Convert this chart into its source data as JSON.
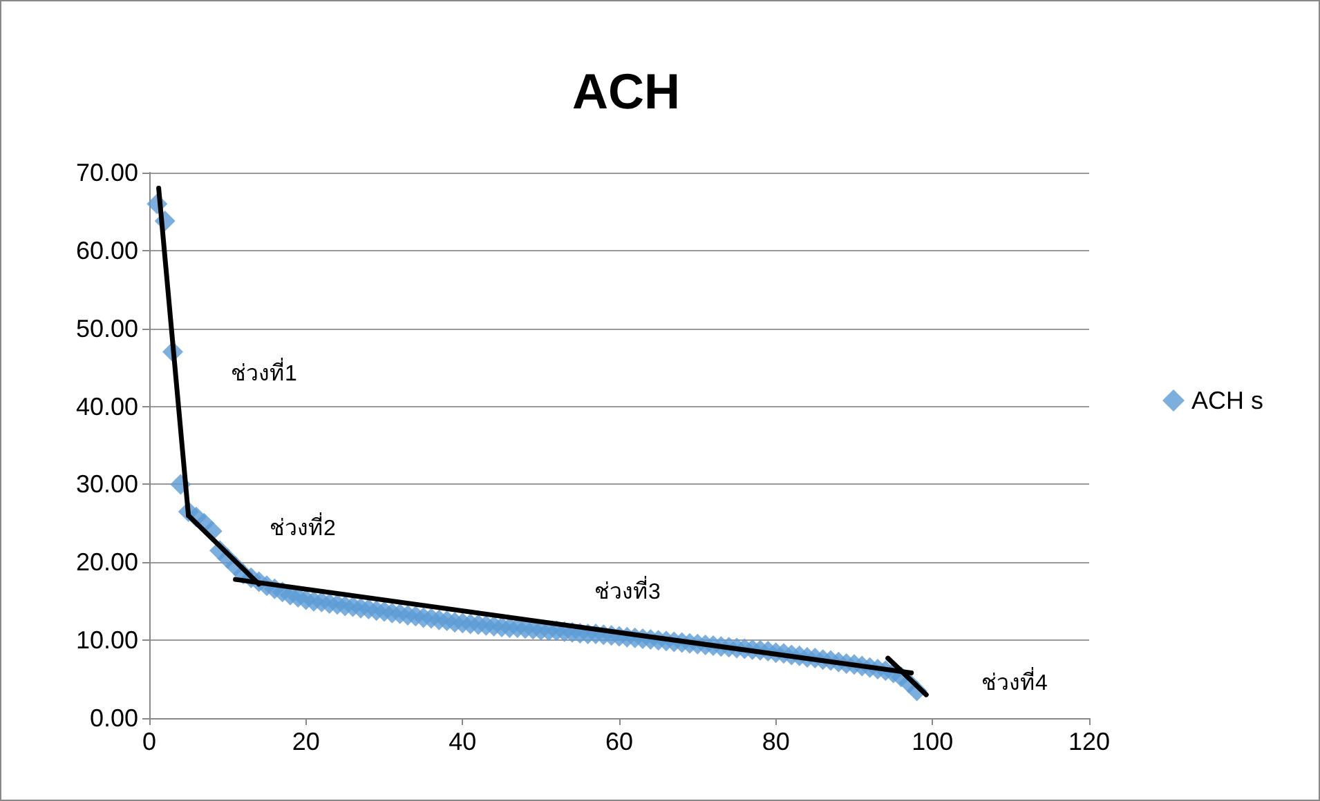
{
  "chart_data": {
    "type": "scatter",
    "title": "ACH",
    "xlim": [
      0,
      120
    ],
    "xticks": [
      0,
      20,
      40,
      60,
      80,
      100,
      120
    ],
    "ylim": [
      0,
      70
    ],
    "yticks": [
      {
        "value": 0,
        "label": "0.00"
      },
      {
        "value": 10,
        "label": "10.00"
      },
      {
        "value": 20,
        "label": "20.00"
      },
      {
        "value": 30,
        "label": "30.00"
      },
      {
        "value": 40,
        "label": "40.00"
      },
      {
        "value": 50,
        "label": "50.00"
      },
      {
        "value": 60,
        "label": "60.00"
      },
      {
        "value": 70,
        "label": "70.00"
      }
    ],
    "grid": "y",
    "legend": "right",
    "marker": "diamond",
    "series": [
      {
        "name": "ACH s",
        "color": "#5b9bd5",
        "x": [
          1,
          2,
          3,
          4,
          5,
          6,
          7,
          8,
          9,
          10,
          11,
          12,
          13,
          14,
          15,
          16,
          17,
          18,
          19,
          20,
          21,
          22,
          23,
          24,
          25,
          26,
          27,
          28,
          29,
          30,
          31,
          32,
          33,
          34,
          35,
          36,
          37,
          38,
          39,
          40,
          41,
          42,
          43,
          44,
          45,
          46,
          47,
          48,
          49,
          50,
          51,
          52,
          53,
          54,
          55,
          56,
          57,
          58,
          59,
          60,
          61,
          62,
          63,
          64,
          65,
          66,
          67,
          68,
          69,
          70,
          71,
          72,
          73,
          74,
          75,
          76,
          77,
          78,
          79,
          80,
          81,
          82,
          83,
          84,
          85,
          86,
          87,
          88,
          89,
          90,
          91,
          92,
          93,
          94,
          95,
          96,
          97,
          98
        ],
        "values": [
          66,
          63.8,
          47,
          30,
          26.5,
          25.8,
          25,
          24,
          21.5,
          20.5,
          19.5,
          18.5,
          18,
          17.5,
          17,
          16.6,
          16.2,
          15.8,
          15.5,
          15.2,
          15.0,
          14.9,
          14.7,
          14.6,
          14.4,
          14.3,
          14.1,
          14.0,
          13.8,
          13.7,
          13.5,
          13.4,
          13.2,
          13.1,
          12.9,
          12.8,
          12.6,
          12.5,
          12.3,
          12.2,
          12.1,
          12.0,
          11.9,
          11.8,
          11.7,
          11.6,
          11.6,
          11.5,
          11.4,
          11.3,
          11.2,
          11.2,
          11.1,
          11.0,
          10.9,
          10.8,
          10.8,
          10.7,
          10.6,
          10.5,
          10.4,
          10.3,
          10.2,
          10.1,
          10.0,
          9.9,
          9.8,
          9.7,
          9.6,
          9.5,
          9.4,
          9.3,
          9.2,
          9.1,
          9.0,
          8.9,
          8.8,
          8.7,
          8.6,
          8.4,
          8.3,
          8.1,
          8.0,
          7.8,
          7.7,
          7.5,
          7.4,
          7.2,
          7.0,
          6.9,
          6.7,
          6.5,
          6.3,
          6.1,
          5.8,
          5.3,
          4.5,
          3.5
        ]
      },
      {
        "type": "line",
        "marker": "none",
        "color": "#000000",
        "x": [
          1.2,
          5
        ],
        "values": [
          68,
          26
        ]
      },
      {
        "type": "line",
        "marker": "none",
        "color": "#000000",
        "x": [
          5,
          14
        ],
        "values": [
          26,
          17.2
        ]
      },
      {
        "type": "line",
        "marker": "none",
        "color": "#000000",
        "x": [
          11,
          97.3
        ],
        "values": [
          17.8,
          5.8
        ]
      },
      {
        "type": "line",
        "marker": "none",
        "color": "#000000",
        "x": [
          94.3,
          99.2
        ],
        "values": [
          7.7,
          3.0
        ]
      }
    ],
    "annotations": [
      "ช่วงที่1",
      "ช่วงที่2",
      "ช่วงที่3",
      "ช่วงที่4"
    ]
  }
}
